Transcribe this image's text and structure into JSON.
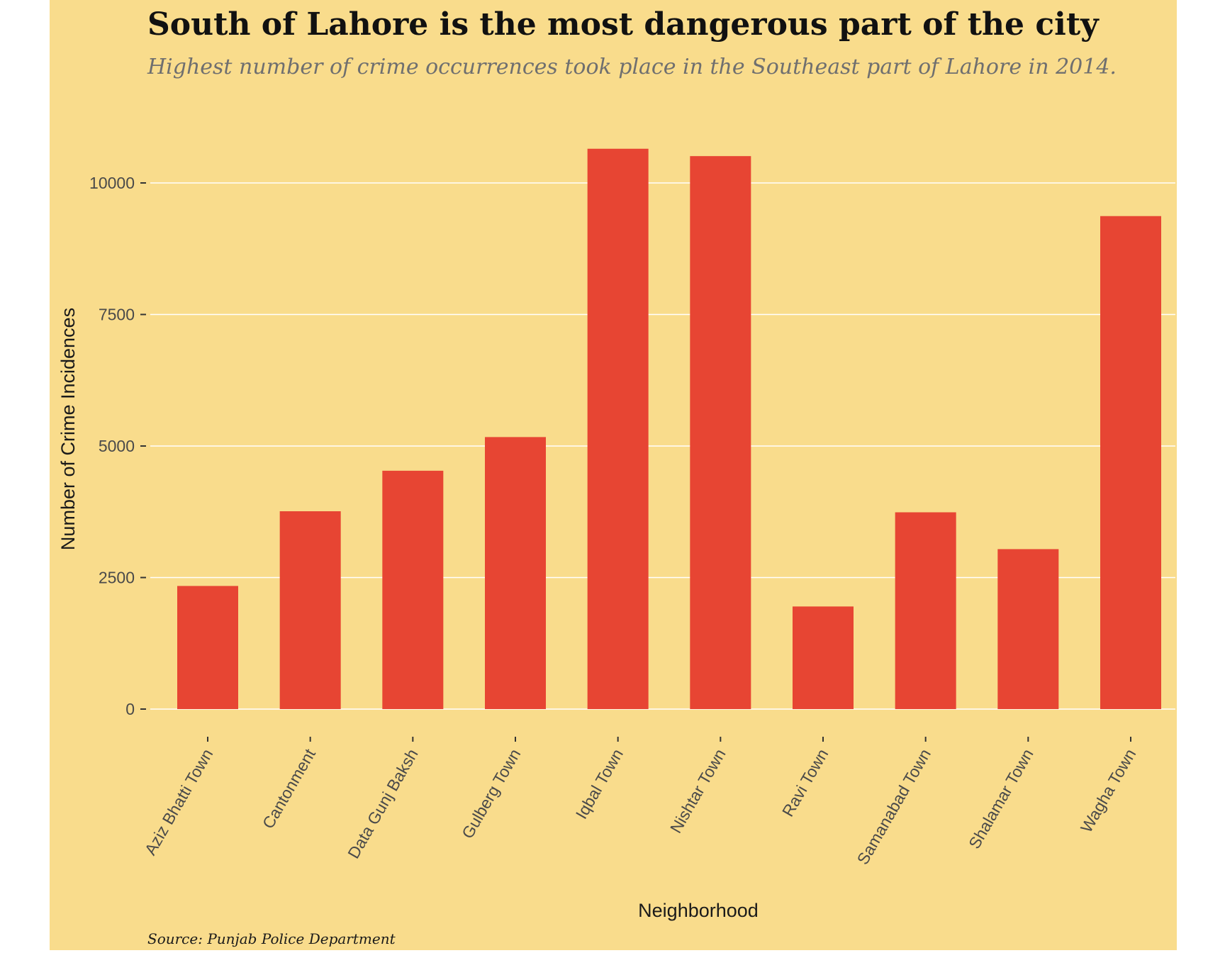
{
  "chart_data": {
    "type": "bar",
    "title": "South of Lahore is the most dangerous part of the city",
    "subtitle": "Highest number of crime occurrences took place in the Southeast part of Lahore in 2014.",
    "caption": "Source: Punjab Police Department",
    "xlabel": "Neighborhood",
    "ylabel": "Number of Crime Incidences",
    "categories": [
      "Aziz Bhatti Town",
      "Cantonment",
      "Data Gunj Baksh",
      "Gulberg Town",
      "Iqbal Town",
      "Nishtar Town",
      "Ravi Town",
      "Samanabad Town",
      "Shalamar Town",
      "Wagha Town"
    ],
    "values": [
      2340,
      3760,
      4530,
      5170,
      10650,
      10510,
      1950,
      3740,
      3040,
      9370
    ],
    "ylim": [
      0,
      11000
    ],
    "yticks": [
      0,
      2500,
      5000,
      7500,
      10000
    ],
    "ytick_labels": [
      "0",
      "2500",
      "5000",
      "7500",
      "10000"
    ],
    "grid": "horizontal",
    "legend": "none",
    "colors": {
      "bar": "#e74533",
      "background": "#f9dc8c",
      "grid": "#ffffff"
    }
  }
}
